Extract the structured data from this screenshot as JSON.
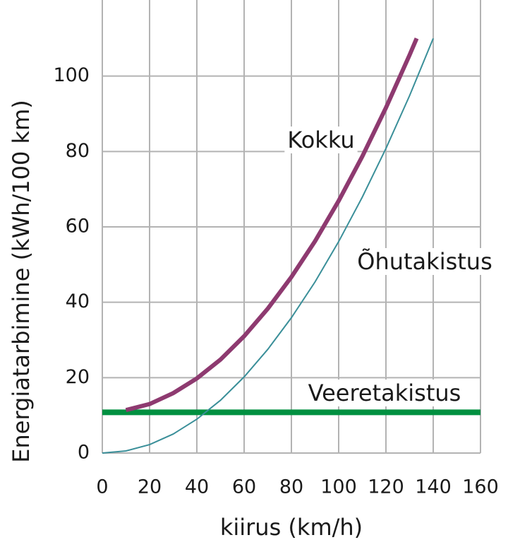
{
  "chart_data": {
    "type": "line",
    "x_label": "kiirus (km/h)",
    "y_label": "Energiatarbimine (kWh/100 km)",
    "xlim": [
      0,
      160
    ],
    "xticks": [
      0,
      20,
      40,
      60,
      80,
      100,
      120,
      140,
      160
    ],
    "ylim": [
      0,
      120
    ],
    "yticks": [
      0,
      20,
      40,
      60,
      80,
      100
    ],
    "grid": true,
    "series": [
      {
        "name": "Veeretakistus",
        "color": "#009040",
        "x": [
          0,
          160
        ],
        "values": [
          10.8,
          10.8
        ]
      },
      {
        "name": "Õhutakistus",
        "color": "#3a8f99",
        "x": [
          0,
          10,
          20,
          30,
          40,
          50,
          60,
          70,
          80,
          90,
          100,
          110,
          120,
          130,
          140
        ],
        "values": [
          0,
          0.56,
          2.24,
          5.05,
          8.98,
          14.0,
          20.2,
          27.5,
          35.9,
          45.4,
          56.1,
          67.9,
          80.8,
          94.8,
          110
        ]
      },
      {
        "name": "Kokku",
        "color": "#8e3a70",
        "x": [
          10,
          20,
          30,
          40,
          50,
          60,
          70,
          80,
          90,
          100,
          110,
          120,
          130,
          133
        ],
        "values": [
          11.4,
          13.0,
          15.9,
          19.8,
          24.8,
          31.0,
          38.3,
          46.7,
          56.2,
          66.9,
          78.7,
          91.6,
          105.6,
          110
        ]
      }
    ]
  }
}
